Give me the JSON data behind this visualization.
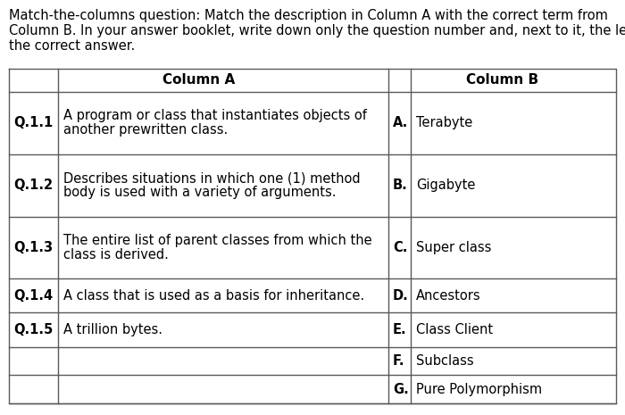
{
  "intro_lines": [
    "Match-the-columns question: Match the description in Column A with the correct term from",
    "Column B. In your answer booklet, write down only the question number and, next to it, the letter of",
    "the correct answer."
  ],
  "col_a_header": "Column A",
  "col_b_header": "Column B",
  "col_a_rows": [
    {
      "q": "Q.1.1",
      "line1": "A program or class that instantiates objects of",
      "line2": "another prewritten class."
    },
    {
      "q": "Q.1.2",
      "line1": "Describes situations in which one (1) method",
      "line2": "body is used with a variety of arguments."
    },
    {
      "q": "Q.1.3",
      "line1": "The entire list of parent classes from which the",
      "line2": "class is derived."
    },
    {
      "q": "Q.1.4",
      "line1": "A class that is used as a basis for inheritance.",
      "line2": ""
    },
    {
      "q": "Q.1.5",
      "line1": "A trillion bytes.",
      "line2": ""
    },
    {
      "q": "",
      "line1": "",
      "line2": ""
    },
    {
      "q": "",
      "line1": "",
      "line2": ""
    }
  ],
  "col_b_rows": [
    {
      "letter": "A.",
      "text": "Terabyte"
    },
    {
      "letter": "B.",
      "text": "Gigabyte"
    },
    {
      "letter": "C.",
      "text": "Super class"
    },
    {
      "letter": "D.",
      "text": "Ancestors"
    },
    {
      "letter": "E.",
      "text": "Class Client"
    },
    {
      "letter": "F.",
      "text": "Subclass"
    },
    {
      "letter": "G.",
      "text": "Pure Polymorphism"
    }
  ],
  "bg_color": "#ffffff",
  "text_color": "#000000",
  "border_color": "#5a5a5a",
  "intro_font_size": 10.5,
  "font_size": 10.5,
  "header_font_size": 11
}
